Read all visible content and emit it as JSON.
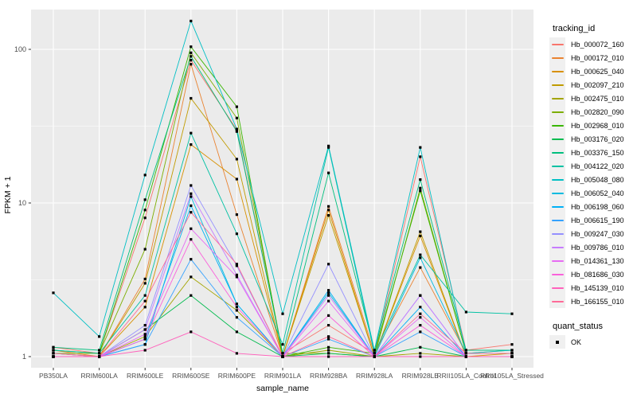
{
  "chart_data": {
    "type": "line",
    "title": "",
    "xlabel": "sample_name",
    "ylabel": "FPKM + 1",
    "y_scale": "log10",
    "y_ticks": [
      1,
      10,
      100
    ],
    "y_minor_ticks": [
      3.1623,
      31.623
    ],
    "ylim": [
      0.93,
      175
    ],
    "grid": true,
    "panel_bg": "#EBEBEB",
    "grid_color": "#FFFFFF",
    "axis_text_color": "#4D4D4D",
    "point_shape": "filled-square",
    "point_color": "#000000",
    "categories": [
      "PB350LA",
      "RRIM600LA",
      "RRIM600LE",
      "RRIM600SE",
      "RRIM600PE",
      "RRIM901LA",
      "RRIM928BA",
      "RRIM928LA",
      "RRIM928LE",
      "RRII105LA_Control",
      "RRII105LA_Stressed"
    ],
    "series": [
      {
        "name": "Hb_000072_160",
        "color": "#F8766D",
        "values": [
          1.15,
          1.05,
          8.0,
          85,
          30,
          1.05,
          1.6,
          1.05,
          20,
          1.1,
          1.2
        ]
      },
      {
        "name": "Hb_000172_010",
        "color": "#EA8331",
        "values": [
          1.1,
          1.0,
          3.2,
          80,
          8.4,
          1.0,
          9.5,
          1.05,
          3.8,
          1.05,
          1.1
        ]
      },
      {
        "name": "Hb_000625_040",
        "color": "#D89000",
        "values": [
          1.05,
          1.0,
          2.1,
          24,
          14.3,
          1.0,
          9.0,
          1.0,
          6.1,
          1.0,
          1.05
        ]
      },
      {
        "name": "Hb_002097_210",
        "color": "#C09B00",
        "values": [
          1.0,
          1.0,
          3.0,
          48,
          19.3,
          1.0,
          8.3,
          1.0,
          6.5,
          1.0,
          1.0
        ]
      },
      {
        "name": "Hb_002475_010",
        "color": "#A3A500",
        "values": [
          1.0,
          1.0,
          1.35,
          3.3,
          2.0,
          1.0,
          1.1,
          1.0,
          1.05,
          1.0,
          1.0
        ]
      },
      {
        "name": "Hb_002820_090",
        "color": "#7CAE00",
        "values": [
          1.05,
          1.05,
          5.0,
          95,
          35.7,
          1.05,
          1.05,
          1.0,
          12.5,
          1.05,
          1.05
        ]
      },
      {
        "name": "Hb_002968_010",
        "color": "#39B600",
        "values": [
          1.1,
          1.05,
          9.0,
          104,
          42.3,
          1.0,
          1.15,
          1.05,
          12.0,
          1.05,
          1.05
        ]
      },
      {
        "name": "Hb_003176_020",
        "color": "#00BB4E",
        "values": [
          1.0,
          1.0,
          1.5,
          2.5,
          1.45,
          1.0,
          1.05,
          1.0,
          1.15,
          1.0,
          1.0
        ]
      },
      {
        "name": "Hb_003376_150",
        "color": "#00BF7D",
        "values": [
          1.15,
          1.1,
          10.5,
          90,
          29.2,
          1.05,
          15.7,
          1.1,
          14.2,
          1.1,
          1.1
        ]
      },
      {
        "name": "Hb_004122_020",
        "color": "#00C1A3",
        "values": [
          1.1,
          1.05,
          2.5,
          28.5,
          6.3,
          1.2,
          23.0,
          1.05,
          4.6,
          1.95,
          1.9
        ]
      },
      {
        "name": "Hb_005048_080",
        "color": "#00BFC4",
        "values": [
          2.6,
          1.35,
          15.2,
          153,
          30.3,
          1.9,
          23.5,
          1.1,
          23.0,
          1.05,
          1.1
        ]
      },
      {
        "name": "Hb_006052_040",
        "color": "#00BAE0",
        "values": [
          1.05,
          1.0,
          1.2,
          11.0,
          2.2,
          1.0,
          2.6,
          1.0,
          4.4,
          1.05,
          1.05
        ]
      },
      {
        "name": "Hb_006198_060",
        "color": "#00B0F6",
        "values": [
          1.0,
          1.0,
          1.3,
          9.6,
          2.2,
          1.0,
          2.7,
          1.0,
          2.1,
          1.0,
          1.0
        ]
      },
      {
        "name": "Hb_006615_190",
        "color": "#35A2FF",
        "values": [
          1.0,
          1.0,
          1.2,
          4.3,
          1.8,
          1.0,
          1.3,
          1.0,
          1.45,
          1.0,
          1.0
        ]
      },
      {
        "name": "Hb_009247_030",
        "color": "#9590FF",
        "values": [
          1.0,
          1.0,
          1.6,
          13.0,
          3.9,
          1.0,
          4.0,
          1.0,
          2.5,
          1.0,
          1.0
        ]
      },
      {
        "name": "Hb_009786_010",
        "color": "#C77CFF",
        "values": [
          1.0,
          1.0,
          1.5,
          11.5,
          3.4,
          1.0,
          2.5,
          1.0,
          2.5,
          1.0,
          1.0
        ]
      },
      {
        "name": "Hb_014361_130",
        "color": "#E76BF3",
        "values": [
          1.0,
          1.0,
          1.4,
          6.8,
          3.3,
          1.0,
          2.3,
          1.0,
          1.8,
          1.0,
          1.0
        ]
      },
      {
        "name": "Hb_081686_030",
        "color": "#FA62DB",
        "values": [
          1.0,
          1.0,
          1.3,
          5.8,
          2.1,
          1.0,
          1.85,
          1.0,
          1.6,
          1.0,
          1.0
        ]
      },
      {
        "name": "Hb_145139_010",
        "color": "#FF62BC",
        "values": [
          1.0,
          1.0,
          1.1,
          1.45,
          1.05,
          1.0,
          1.0,
          1.0,
          1.0,
          1.0,
          1.0
        ]
      },
      {
        "name": "Hb_166155_010",
        "color": "#FF6A98",
        "values": [
          1.05,
          1.0,
          2.3,
          8.7,
          4.0,
          1.0,
          1.35,
          1.0,
          1.9,
          1.05,
          1.05
        ]
      }
    ],
    "legend": {
      "color_title": "tracking_id",
      "shape_title": "quant_status",
      "shape_items": [
        {
          "label": "OK"
        }
      ],
      "position": "right"
    }
  }
}
